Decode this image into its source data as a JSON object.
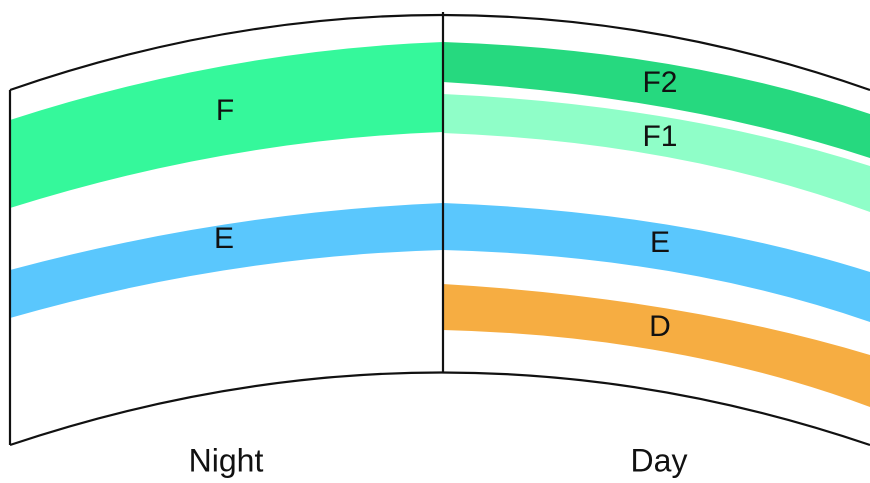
{
  "night": {
    "caption": "Night",
    "layers": [
      {
        "key": "F",
        "label": "F",
        "color": "#35f89b"
      },
      {
        "key": "E",
        "label": "E",
        "color": "#5ac7fd"
      }
    ]
  },
  "day": {
    "caption": "Day",
    "layers": [
      {
        "key": "F2",
        "label": "F2",
        "color": "#26d97f"
      },
      {
        "key": "F1",
        "label": "F1",
        "color": "#8ffec8"
      },
      {
        "key": "E",
        "label": "E",
        "color": "#5ac7fd"
      },
      {
        "key": "D",
        "label": "D",
        "color": "#f6ad42"
      }
    ]
  }
}
